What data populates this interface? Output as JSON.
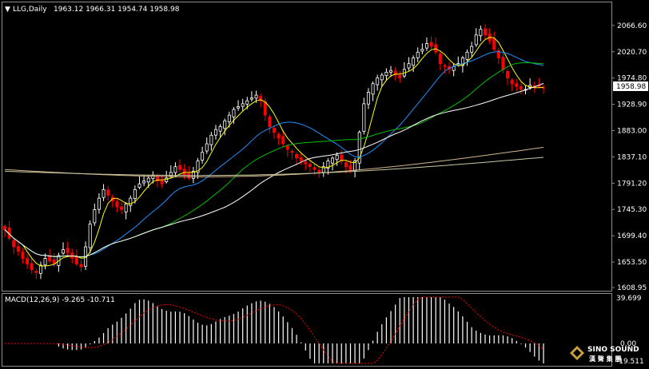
{
  "header": {
    "symbol": "LLG,Daily",
    "ohlc": "1963.12 1966.31 1954.74 1958.98"
  },
  "macd": {
    "label": "MACD(12,26,9) -9.265 -10.711",
    "axis_top": "39.699",
    "axis_zero": "0.00",
    "axis_bottom": "-19.511"
  },
  "price_axis": {
    "ticks": [
      "2066.60",
      "2020.70",
      "1974.80",
      "1928.90",
      "1883.00",
      "1837.10",
      "1791.20",
      "1745.30",
      "1699.40",
      "1653.50",
      "1608.95"
    ],
    "current": "1958.98"
  },
  "logo": {
    "line1": "SINO SOUND",
    "line2": "漢 聲 集 團"
  },
  "colors": {
    "background": "#000000",
    "bull": "#ffffff",
    "bear": "#ff0000",
    "ma_fast": "#ffff00",
    "ma_blue": "#1e90ff",
    "ma_green": "#00c000",
    "ma_white": "#ffffff",
    "ma_tan": "#d2b48c",
    "macd_hist": "#ffffff",
    "macd_signal": "#ff0000"
  },
  "chart_data": {
    "type": "candlestick",
    "title": "LLG,Daily",
    "ylim": [
      1608.95,
      2086
    ],
    "series": [
      {
        "name": "close",
        "values": [
          1710,
          1695,
          1680,
          1672,
          1660,
          1650,
          1640,
          1635,
          1648,
          1660,
          1655,
          1650,
          1665,
          1675,
          1670,
          1660,
          1650,
          1645,
          1680,
          1720,
          1745,
          1765,
          1780,
          1770,
          1760,
          1750,
          1745,
          1755,
          1765,
          1780,
          1790,
          1795,
          1800,
          1805,
          1795,
          1790,
          1800,
          1810,
          1820,
          1815,
          1805,
          1800,
          1812,
          1830,
          1845,
          1860,
          1875,
          1885,
          1890,
          1900,
          1910,
          1920,
          1925,
          1930,
          1935,
          1940,
          1945,
          1935,
          1910,
          1890,
          1880,
          1870,
          1860,
          1850,
          1845,
          1835,
          1830,
          1825,
          1820,
          1815,
          1810,
          1820,
          1830,
          1835,
          1840,
          1830,
          1820,
          1815,
          1830,
          1880,
          1930,
          1950,
          1965,
          1975,
          1980,
          1985,
          1988,
          1980,
          1975,
          1990,
          2000,
          2010,
          2020,
          2025,
          2035,
          2030,
          2020,
          2000,
          1995,
          1990,
          1995,
          2000,
          2010,
          2020,
          2030,
          2050,
          2060,
          2050,
          2040,
          2025,
          2010,
          1990,
          1975,
          1965,
          1960,
          1955,
          1955,
          1962,
          1958,
          1960,
          1958
        ]
      }
    ]
  }
}
